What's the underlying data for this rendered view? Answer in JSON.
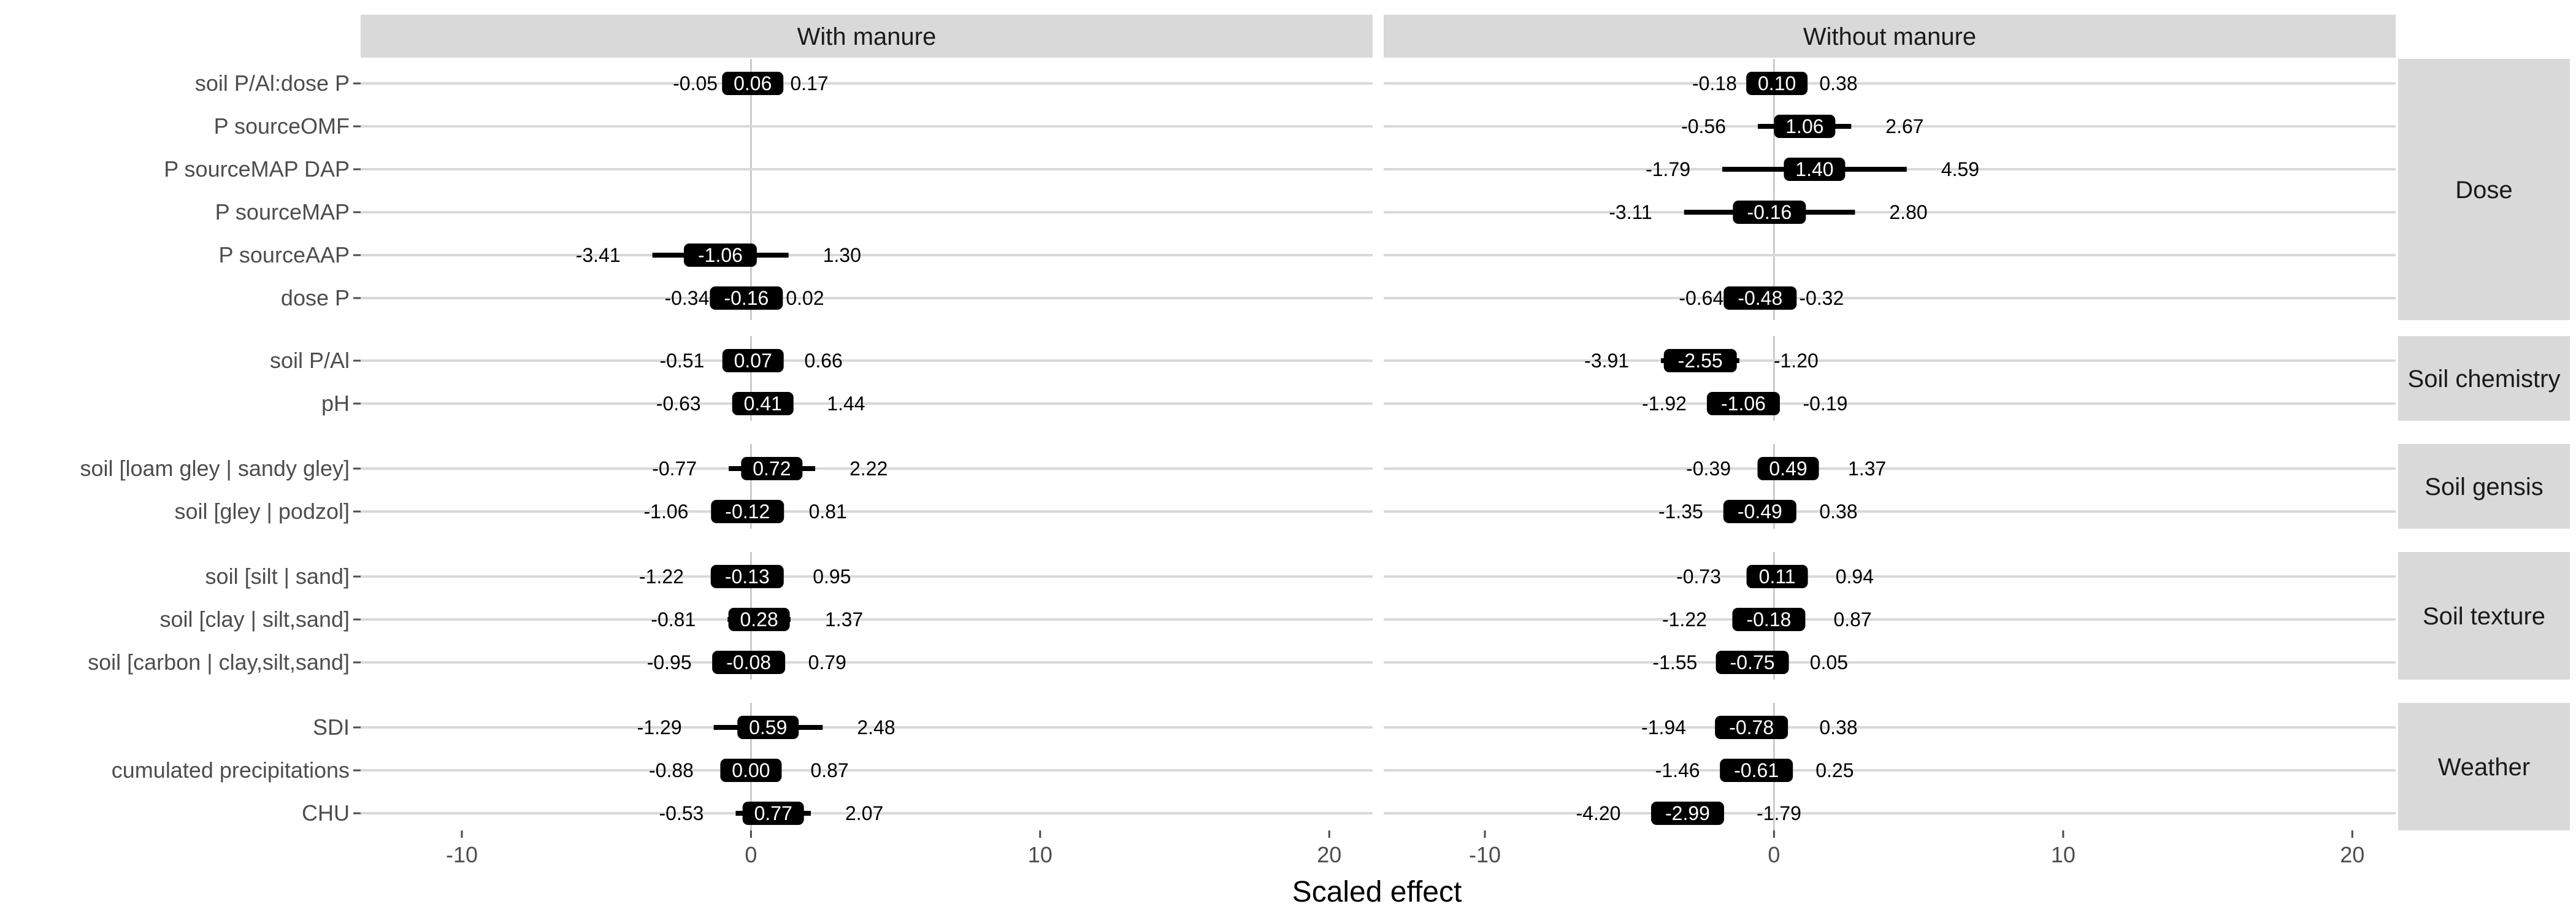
{
  "chart_data": {
    "type": "forest",
    "x_label": "Scaled effect",
    "x_ticks": [
      -10,
      0,
      10,
      20
    ],
    "xlim": [
      -13.5,
      21.5
    ],
    "panels": [
      "With manure",
      "Without manure"
    ],
    "groups": [
      {
        "name": "Dose",
        "rows": [
          {
            "label": "soil P/Al:dose P",
            "with": {
              "lo": -0.05,
              "est": 0.06,
              "hi": 0.17
            },
            "without": {
              "lo": -0.18,
              "est": 0.1,
              "hi": 0.38
            }
          },
          {
            "label": "P sourceOMF",
            "with": null,
            "without": {
              "lo": -0.56,
              "est": 1.06,
              "hi": 2.67
            }
          },
          {
            "label": "P sourceMAP DAP",
            "with": null,
            "without": {
              "lo": -1.79,
              "est": 1.4,
              "hi": 4.59
            }
          },
          {
            "label": "P sourceMAP",
            "with": null,
            "without": {
              "lo": -3.11,
              "est": -0.16,
              "hi": 2.8
            }
          },
          {
            "label": "P sourceAAP",
            "with": {
              "lo": -3.41,
              "est": -1.06,
              "hi": 1.3
            },
            "without": null
          },
          {
            "label": "dose P",
            "with": {
              "lo": -0.34,
              "est": -0.16,
              "hi": 0.02
            },
            "without": {
              "lo": -0.64,
              "est": -0.48,
              "hi": -0.32
            }
          }
        ]
      },
      {
        "name": "Soil chemistry",
        "rows": [
          {
            "label": "soil P/Al",
            "with": {
              "lo": -0.51,
              "est": 0.07,
              "hi": 0.66
            },
            "without": {
              "lo": -3.91,
              "est": -2.55,
              "hi": -1.2
            }
          },
          {
            "label": "pH",
            "with": {
              "lo": -0.63,
              "est": 0.41,
              "hi": 1.44
            },
            "without": {
              "lo": -1.92,
              "est": -1.06,
              "hi": -0.19
            }
          }
        ]
      },
      {
        "name": "Soil gensis",
        "rows": [
          {
            "label": "soil [loam gley | sandy gley]",
            "with": {
              "lo": -0.77,
              "est": 0.72,
              "hi": 2.22
            },
            "without": {
              "lo": -0.39,
              "est": 0.49,
              "hi": 1.37
            }
          },
          {
            "label": "soil [gley | podzol]",
            "with": {
              "lo": -1.06,
              "est": -0.12,
              "hi": 0.81
            },
            "without": {
              "lo": -1.35,
              "est": -0.49,
              "hi": 0.38
            }
          }
        ]
      },
      {
        "name": "Soil texture",
        "rows": [
          {
            "label": "soil [silt | sand]",
            "with": {
              "lo": -1.22,
              "est": -0.13,
              "hi": 0.95
            },
            "without": {
              "lo": -0.73,
              "est": 0.11,
              "hi": 0.94
            }
          },
          {
            "label": "soil [clay | silt,sand]",
            "with": {
              "lo": -0.81,
              "est": 0.28,
              "hi": 1.37
            },
            "without": {
              "lo": -1.22,
              "est": -0.18,
              "hi": 0.87
            }
          },
          {
            "label": "soil [carbon | clay,silt,sand]",
            "with": {
              "lo": -0.95,
              "est": -0.08,
              "hi": 0.79
            },
            "without": {
              "lo": -1.55,
              "est": -0.75,
              "hi": 0.05
            }
          }
        ]
      },
      {
        "name": "Weather",
        "rows": [
          {
            "label": "SDI",
            "with": {
              "lo": -1.29,
              "est": 0.59,
              "hi": 2.48
            },
            "without": {
              "lo": -1.94,
              "est": -0.78,
              "hi": 0.38
            }
          },
          {
            "label": "cumulated precipitations",
            "with": {
              "lo": -0.88,
              "est": 0.0,
              "hi": 0.87
            },
            "without": {
              "lo": -1.46,
              "est": -0.61,
              "hi": 0.25
            }
          },
          {
            "label": "CHU",
            "with": {
              "lo": -0.53,
              "est": 0.77,
              "hi": 2.07
            },
            "without": {
              "lo": -4.2,
              "est": -2.99,
              "hi": -1.79
            }
          }
        ]
      }
    ],
    "colors": {
      "strip": "#d9d9d9",
      "grid": "#d9d9d9",
      "zero_line": "#b3b3b3",
      "bar": "#000000",
      "label_bg": "#000000",
      "label_text": "#ffffff",
      "axis_text": "#4d4d4d"
    }
  }
}
